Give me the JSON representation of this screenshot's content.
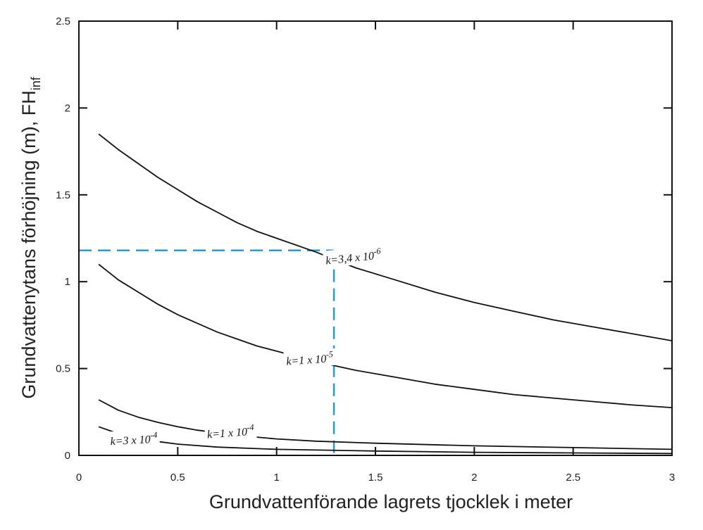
{
  "chart_data": {
    "type": "line",
    "xlabel": "Grundvattenförande lagrets tjocklek i meter",
    "ylabel_main": "Grundvattenytans förhöjning (m), FH",
    "ylabel_sub": "inf",
    "xlim": [
      0,
      3
    ],
    "ylim": [
      0,
      2.5
    ],
    "xticks": [
      "0",
      "0.5",
      "1",
      "1.5",
      "2",
      "2.5",
      "3"
    ],
    "yticks": [
      "0",
      "0.5",
      "1",
      "1.5",
      "2",
      "2.5"
    ],
    "grid": false,
    "series": [
      {
        "name": "k=3,4 x 10-6",
        "label_base": "k=3,4 x 10",
        "label_exp": "-6",
        "x": [
          0.1,
          0.2,
          0.3,
          0.4,
          0.5,
          0.6,
          0.7,
          0.8,
          0.9,
          1.0,
          1.2,
          1.4,
          1.6,
          1.8,
          2.0,
          2.2,
          2.4,
          2.6,
          2.8,
          3.0
        ],
        "y": [
          1.85,
          1.76,
          1.68,
          1.6,
          1.53,
          1.46,
          1.4,
          1.34,
          1.29,
          1.25,
          1.17,
          1.08,
          1.01,
          0.94,
          0.88,
          0.83,
          0.78,
          0.74,
          0.7,
          0.66
        ]
      },
      {
        "name": "k=1 x 10-5",
        "label_base": "k=1 x 10",
        "label_exp": "-5",
        "x": [
          0.1,
          0.2,
          0.3,
          0.4,
          0.5,
          0.6,
          0.7,
          0.8,
          0.9,
          1.0,
          1.2,
          1.4,
          1.6,
          1.8,
          2.0,
          2.2,
          2.4,
          2.6,
          2.8,
          3.0
        ],
        "y": [
          1.1,
          1.01,
          0.94,
          0.87,
          0.81,
          0.76,
          0.71,
          0.67,
          0.63,
          0.6,
          0.54,
          0.49,
          0.45,
          0.41,
          0.38,
          0.35,
          0.33,
          0.31,
          0.29,
          0.275
        ]
      },
      {
        "name": "k=1 x 10-4",
        "label_base": "k=1 x 10",
        "label_exp": "-4",
        "x": [
          0.1,
          0.2,
          0.3,
          0.4,
          0.5,
          0.6,
          0.7,
          0.8,
          1.0,
          1.2,
          1.5,
          2.0,
          2.5,
          3.0
        ],
        "y": [
          0.32,
          0.26,
          0.22,
          0.19,
          0.165,
          0.145,
          0.13,
          0.115,
          0.095,
          0.082,
          0.07,
          0.055,
          0.045,
          0.035
        ]
      },
      {
        "name": "k=3 x 10-4",
        "label_base": "k=3 x 10",
        "label_exp": "-4",
        "x": [
          0.1,
          0.2,
          0.3,
          0.4,
          0.5,
          0.7,
          1.0,
          1.5,
          2.0,
          2.5,
          3.0
        ],
        "y": [
          0.165,
          0.125,
          0.1,
          0.08,
          0.065,
          0.048,
          0.035,
          0.025,
          0.018,
          0.014,
          0.011
        ]
      }
    ],
    "annotation": {
      "type": "dashed-guide",
      "color": "#2a9ad2",
      "x": 1.29,
      "y": 1.18
    },
    "colors": {
      "curve": "#111111",
      "axis": "#111111",
      "guide": "#2a9ad2"
    }
  }
}
